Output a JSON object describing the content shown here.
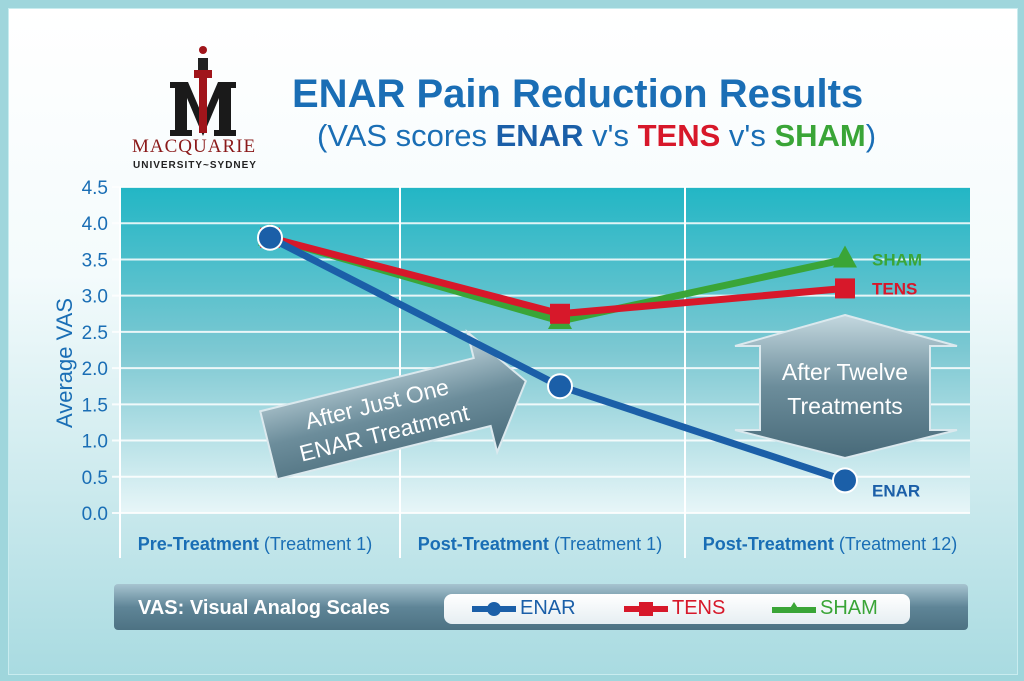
{
  "logo": {
    "name": "MACQUARIE",
    "sub": "UNIVERSITY~SYDNEY"
  },
  "chart_data": {
    "type": "line",
    "title": "ENAR Pain Reduction Results",
    "subtitle": {
      "prefix": "(VAS scores ",
      "s1": "ENAR",
      "mid1": " v's ",
      "s2": "TENS",
      "mid2": " v's ",
      "s3": "SHAM",
      "suffix": ")"
    },
    "ylabel": "Average VAS",
    "ylim": [
      0,
      4.5
    ],
    "yticks": [
      "0.0",
      "0.5",
      "1.0",
      "1.5",
      "2.0",
      "2.5",
      "3.0",
      "3.5",
      "4.0",
      "4.5"
    ],
    "categories": [
      {
        "bold": "Pre-Treatment",
        "rest": " (Treatment 1)"
      },
      {
        "bold": "Post-Treatment",
        "rest": " (Treatment 1)"
      },
      {
        "bold": "Post-Treatment",
        "rest": " (Treatment 12)"
      }
    ],
    "series": [
      {
        "name": "ENAR",
        "color": "#1b5fa8",
        "marker": "circle",
        "values": [
          3.8,
          1.75,
          0.45
        ]
      },
      {
        "name": "TENS",
        "color": "#d7182a",
        "marker": "square",
        "values": [
          3.8,
          2.75,
          3.1
        ]
      },
      {
        "name": "SHAM",
        "color": "#3aa537",
        "marker": "triangle",
        "values": [
          3.8,
          2.65,
          3.5
        ]
      }
    ],
    "annotations": {
      "arrow1": [
        "After Just One",
        "ENAR Treatment"
      ],
      "arrow2": [
        "After Twelve",
        "Treatments"
      ]
    },
    "grid": true,
    "legend_title": "VAS: Visual Analog Scales",
    "legend_position": "bottom"
  }
}
